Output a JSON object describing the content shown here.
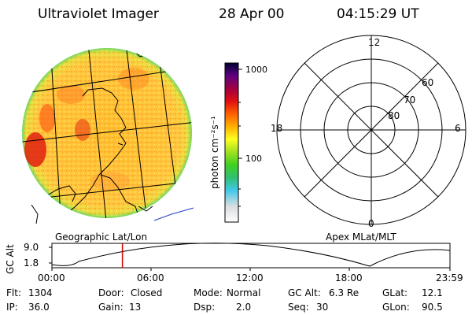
{
  "header": {
    "instrument": "Ultraviolet Imager",
    "date": "28 Apr 00",
    "time": "04:15:29 UT"
  },
  "colorbar": {
    "label": "photon cm⁻²s⁻¹",
    "ticks": [
      "1000",
      "100"
    ]
  },
  "polar": {
    "mlt_labels": {
      "top": "12",
      "left": "18",
      "right": "6",
      "bottom": "0"
    },
    "lat_labels": [
      "60",
      "70",
      "80"
    ]
  },
  "panel_labels": {
    "left": "Geographic Lat/Lon",
    "right": "Apex MLat/MLT"
  },
  "altitude_plot": {
    "ylabel": "GC Alt",
    "yticks": [
      "9.0",
      "1.8"
    ],
    "xticks": [
      "00:00",
      "06:00",
      "12:00",
      "18:00",
      "23:59"
    ],
    "marker_hours": 4.25
  },
  "status": {
    "flt_label": "Flt:",
    "flt_value": "1304",
    "ip_label": "IP:",
    "ip_value": "36.0",
    "door_label": "Door:",
    "door_value": "Closed",
    "gain_label": "Gain:",
    "gain_value": "13",
    "mode_label": "Mode:",
    "mode_value": "Normal",
    "dsp_label": "Dsp:",
    "dsp_value": "2.0",
    "gcalt_label": "GC Alt:",
    "gcalt_value": "6.3 Re",
    "seq_label": "Seq:",
    "seq_value": "30",
    "glat_label": "GLat:",
    "glat_value": "12.1",
    "glon_label": "GLon:",
    "glon_value": "90.5"
  },
  "colors": {
    "red_marker": "#cc0000",
    "coast_blue": "#1f3fcc"
  }
}
